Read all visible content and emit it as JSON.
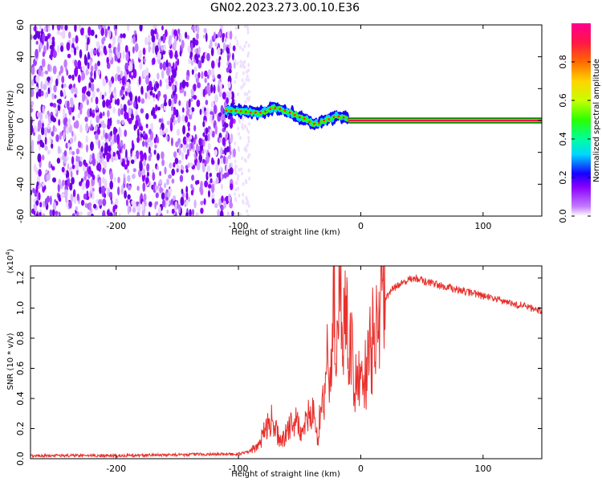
{
  "title": "GN02.2023.273.00.10.E36",
  "chart_data": [
    {
      "type": "heatmap",
      "xlabel": "Height of straight line (km)",
      "ylabel": "Frequency (Hz)",
      "xlim": [
        -270,
        148
      ],
      "ylim": [
        -60,
        60
      ],
      "xticks": [
        -200,
        -100,
        0,
        100
      ],
      "yticks": [
        -60,
        -40,
        -20,
        0,
        20,
        40,
        60
      ],
      "noise_region_x": [
        -270,
        -103
      ],
      "signal_ridge": {
        "x": [
          -110,
          -100,
          -90,
          -80,
          -72,
          -65,
          -58,
          -50,
          -45,
          -40,
          -35,
          -30,
          -25,
          -20,
          -15,
          -10,
          0,
          148
        ],
        "y": [
          6,
          6,
          5,
          5,
          8,
          7,
          5,
          2,
          1,
          -2,
          -2,
          0,
          1,
          3,
          2,
          1,
          0,
          0
        ]
      },
      "colorbar": {
        "label": "Normalized spectral amplitude",
        "range": [
          0.0,
          1.0
        ],
        "ticks": [
          0.0,
          0.2,
          0.4,
          0.6,
          0.8
        ],
        "colors": [
          "#ffffff",
          "#c27bff",
          "#8a00ff",
          "#1600ff",
          "#00d7ff",
          "#00ff9c",
          "#2bff00",
          "#c7ff00",
          "#ffd400",
          "#ff6a00",
          "#ff1745",
          "#ff0090"
        ]
      }
    },
    {
      "type": "line",
      "xlabel": "Height of straight line (km)",
      "ylabel": "SNR (10 * v/v)",
      "y_exponent_label": "(x10",
      "y_exponent_power": "4",
      "y_exponent_close": ")",
      "xlim": [
        -270,
        148
      ],
      "ylim": [
        0.0,
        1.28
      ],
      "xticks": [
        -200,
        -100,
        0,
        100
      ],
      "yticks": [
        0.0,
        0.2,
        0.4,
        0.6,
        0.8,
        1.0,
        1.2
      ],
      "color": "#e8302c",
      "series": [
        {
          "x": [
            -270,
            -200,
            -120,
            -100,
            -90,
            -85,
            -80,
            -75,
            -70,
            -65,
            -60,
            -55,
            -50,
            -45,
            -40,
            -38,
            -35,
            -32,
            -30,
            -28,
            -25,
            -22,
            -20,
            -18,
            -15,
            -12,
            -10,
            -8,
            -5,
            -2,
            0,
            5,
            10,
            15,
            20,
            25,
            30,
            35,
            40,
            45,
            50,
            60,
            70,
            80,
            90,
            100,
            110,
            120,
            130,
            140,
            148
          ],
          "values": [
            0.02,
            0.02,
            0.03,
            0.03,
            0.05,
            0.08,
            0.15,
            0.28,
            0.2,
            0.1,
            0.18,
            0.26,
            0.2,
            0.22,
            0.35,
            0.3,
            0.1,
            0.45,
            0.3,
            0.7,
            0.48,
            1.1,
            0.35,
            1.3,
            0.8,
            1.27,
            0.48,
            0.85,
            0.5,
            0.62,
            0.42,
            0.6,
            0.8,
            0.95,
            1.05,
            1.12,
            1.15,
            1.17,
            1.19,
            1.2,
            1.18,
            1.16,
            1.14,
            1.12,
            1.1,
            1.08,
            1.06,
            1.04,
            1.02,
            1.0,
            0.98
          ]
        }
      ]
    }
  ]
}
